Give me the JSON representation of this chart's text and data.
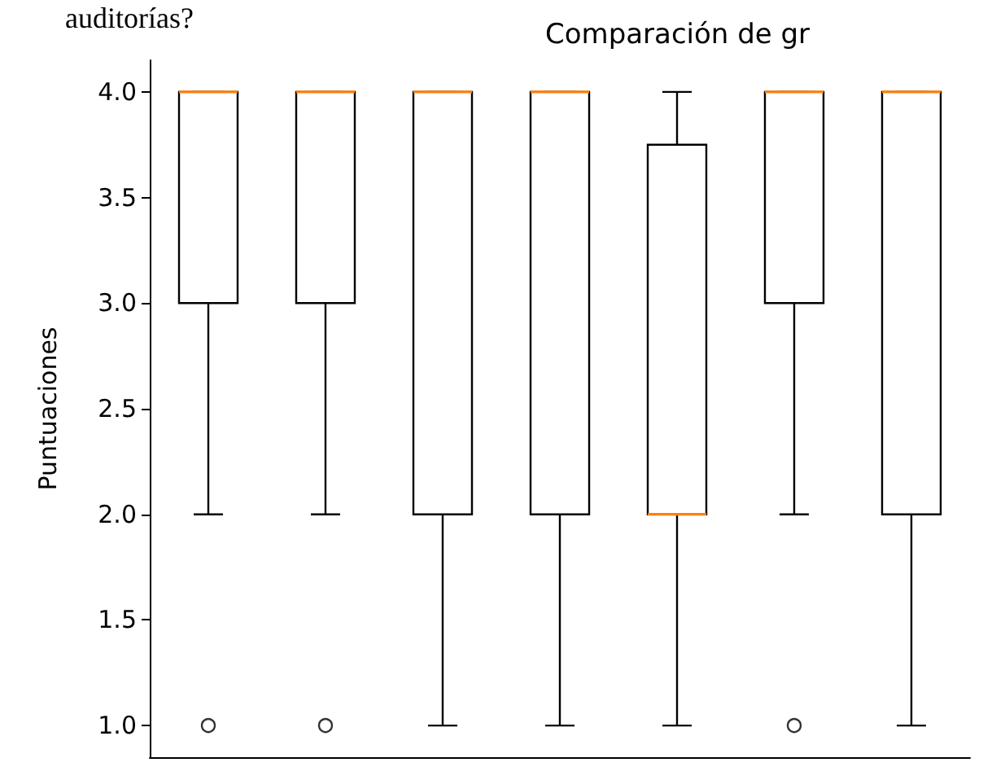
{
  "chart_data": {
    "type": "box",
    "title": "Comparación de gr",
    "ylabel": "Puntuaciones",
    "annotations": [
      "auditorías?"
    ],
    "categories": [
      null,
      null,
      null,
      null,
      null,
      null,
      null
    ],
    "color": "#000000",
    "boxes": [
      {
        "low": 2,
        "q1": 3,
        "median": 4,
        "q3": 4,
        "high": 4,
        "outliers": [
          1
        ]
      },
      {
        "low": 2,
        "q1": 3,
        "median": 4,
        "q3": 4,
        "high": 4,
        "outliers": [
          1
        ]
      },
      {
        "low": 1,
        "q1": 2,
        "median": 4,
        "q3": 4,
        "high": 4
      },
      {
        "low": 1,
        "q1": 2,
        "median": 4,
        "q3": 4,
        "high": 4
      },
      {
        "low": 1,
        "q1": 2,
        "median": 2,
        "q3": 3.75,
        "high": 4
      },
      {
        "low": 2,
        "q1": 3,
        "median": 4,
        "q3": 4,
        "high": 4,
        "outliers": [
          1
        ]
      },
      {
        "low": 1,
        "q1": 2,
        "median": 4,
        "q3": 4,
        "high": 4
      }
    ],
    "ylim": [
      0.85,
      4.15
    ],
    "yticks": [
      {
        "value": 1,
        "label": "1.0"
      },
      {
        "value": 1.5,
        "label": "1.5"
      },
      {
        "value": 2,
        "label": "2.0"
      },
      {
        "value": 2.5,
        "label": "2.5"
      },
      {
        "value": 3,
        "label": "3.0"
      },
      {
        "value": 3.5,
        "label": "3.5"
      },
      {
        "value": 4,
        "label": "4.0"
      }
    ],
    "grid": false
  }
}
